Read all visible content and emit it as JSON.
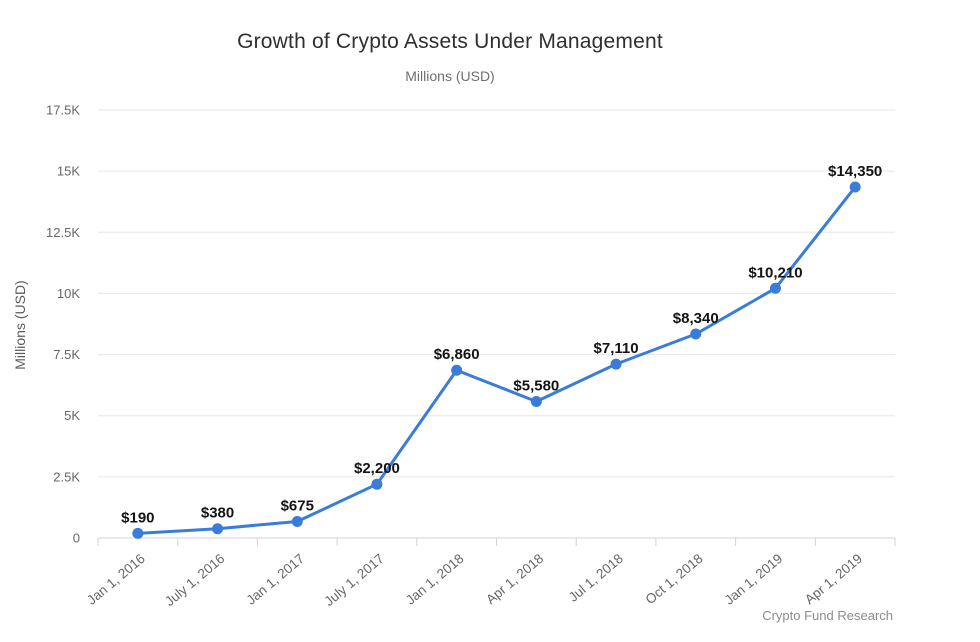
{
  "title": "Growth of Crypto Assets Under Management",
  "subtitle": "Millions (USD)",
  "footer": "Crypto Fund Research",
  "colors": {
    "line": "#3a7cd9",
    "marker": "#3a7cd9",
    "grid": "#e6e6e6",
    "axis_line": "#ccd3e3",
    "tick_text": "#666666",
    "data_label_text": "#141414",
    "footer_text": "#8c8c8c"
  },
  "chart_data": {
    "type": "line",
    "title": "Growth of Crypto Assets Under Management",
    "subtitle": "Millions (USD)",
    "xlabel": "",
    "ylabel": "Millions (USD)",
    "categories": [
      "Jan 1, 2016",
      "July 1, 2016",
      "Jan 1, 2017",
      "July 1, 2017",
      "Jan 1, 2018",
      "Apr 1, 2018",
      "Jul 1, 2018",
      "Oct 1, 2018",
      "Jan 1, 2019",
      "Apr 1, 2019"
    ],
    "values": [
      190,
      380,
      675,
      2200,
      6860,
      5580,
      7110,
      8340,
      10210,
      14350
    ],
    "data_labels": [
      "$190",
      "$380",
      "$675",
      "$2,200",
      "$6,860",
      "$5,580",
      "$7,110",
      "$8,340",
      "$10,210",
      "$14,350"
    ],
    "y_tick_labels": [
      "0",
      "2.5K",
      "5K",
      "7.5K",
      "10K",
      "12.5K",
      "15K",
      "17.5K"
    ],
    "y_tick_values": [
      0,
      2500,
      5000,
      7500,
      10000,
      12500,
      15000,
      17500
    ],
    "ylim": [
      0,
      17500
    ],
    "grid": "horizontal",
    "legend": "none",
    "source": "Crypto Fund Research"
  }
}
